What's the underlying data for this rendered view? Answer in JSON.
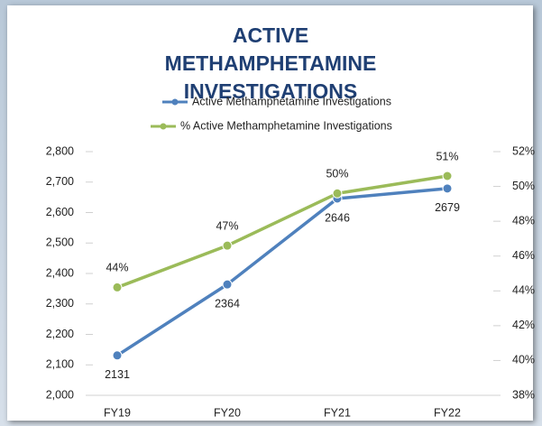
{
  "chart_data": {
    "type": "line",
    "title": "ACTIVE METHAMPHETAMINE INVESTIGATIONS",
    "categories": [
      "FY19",
      "FY20",
      "FY21",
      "FY22"
    ],
    "series": [
      {
        "name": "Active Methamphetamine Investigations",
        "color": "#4f81bd",
        "values": [
          2131,
          2364,
          2646,
          2679
        ]
      },
      {
        "name": "% Active Methamphetamine Investigations",
        "color": "#9bbb59",
        "axis": "y2",
        "values": [
          44.2,
          46.6,
          49.6,
          50.6
        ],
        "value_labels": [
          "44%",
          "47%",
          "50%",
          "51%"
        ]
      }
    ],
    "ylim": [
      2000,
      2800
    ],
    "yticks": [
      {
        "value": 2000,
        "label": "2,000"
      },
      {
        "value": 2100,
        "label": "2,100"
      },
      {
        "value": 2200,
        "label": "2,200"
      },
      {
        "value": 2300,
        "label": "2,300"
      },
      {
        "value": 2400,
        "label": "2,400"
      },
      {
        "value": 2500,
        "label": "2,500"
      },
      {
        "value": 2600,
        "label": "2,600"
      },
      {
        "value": 2700,
        "label": "2,700"
      },
      {
        "value": 2800,
        "label": "2,800"
      }
    ],
    "y2lim": [
      38,
      52
    ],
    "y2ticks": [
      {
        "value": 38,
        "label": "38%"
      },
      {
        "value": 40,
        "label": "40%"
      },
      {
        "value": 42,
        "label": "42%"
      },
      {
        "value": 44,
        "label": "44%"
      },
      {
        "value": 46,
        "label": "46%"
      },
      {
        "value": 48,
        "label": "48%"
      },
      {
        "value": 50,
        "label": "50%"
      },
      {
        "value": 52,
        "label": "52%"
      }
    ],
    "grid": false
  }
}
